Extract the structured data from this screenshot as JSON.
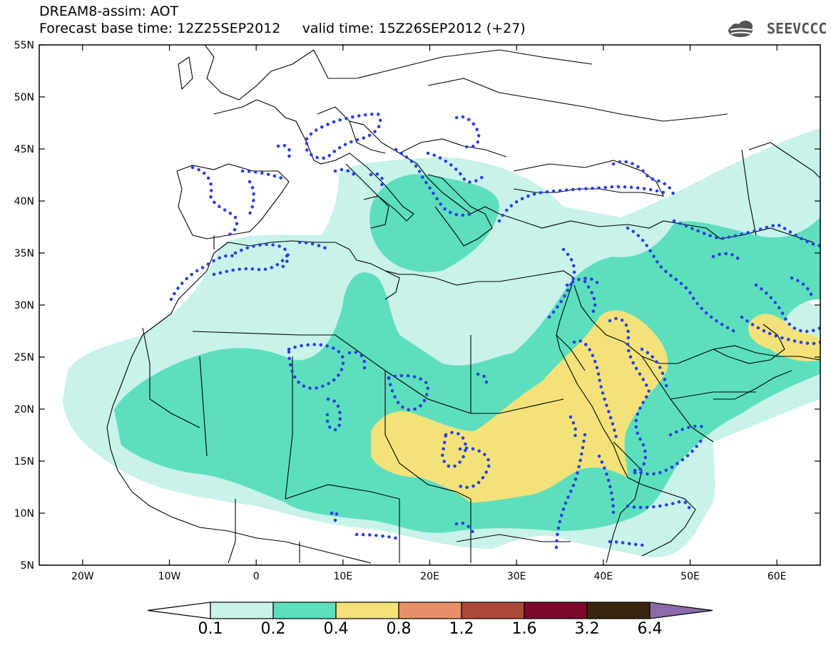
{
  "header": {
    "title_line1": "DREAM8-assim: AOT",
    "title_line2": "Forecast base time: 12Z25SEP2012     valid time: 15Z26SEP2012 (+27)"
  },
  "logo": {
    "text": "SEEVCCC",
    "icon": "cloud-icon"
  },
  "map": {
    "lon_range": [
      -25,
      65
    ],
    "lat_range": [
      5,
      55
    ],
    "lon_ticks": [
      {
        "value": -20,
        "label": "20W"
      },
      {
        "value": -10,
        "label": "10W"
      },
      {
        "value": 0,
        "label": "0"
      },
      {
        "value": 10,
        "label": "10E"
      },
      {
        "value": 20,
        "label": "20E"
      },
      {
        "value": 30,
        "label": "30E"
      },
      {
        "value": 40,
        "label": "40E"
      },
      {
        "value": 50,
        "label": "50E"
      },
      {
        "value": 60,
        "label": "60E"
      }
    ],
    "lat_ticks": [
      {
        "value": 55,
        "label": "55N"
      },
      {
        "value": 50,
        "label": "50N"
      },
      {
        "value": 45,
        "label": "45N"
      },
      {
        "value": 40,
        "label": "40N"
      },
      {
        "value": 35,
        "label": "35N"
      },
      {
        "value": 30,
        "label": "30N"
      },
      {
        "value": 25,
        "label": "25N"
      },
      {
        "value": 20,
        "label": "20N"
      },
      {
        "value": 15,
        "label": "15N"
      },
      {
        "value": 10,
        "label": "10N"
      },
      {
        "value": 5,
        "label": "5N"
      }
    ],
    "contour_style": "blue dotted",
    "colors": {
      "c1": "#c8f2ea",
      "c2": "#5ddfbd",
      "c3": "#f3e27a",
      "contour": "#2a3fe0",
      "coast": "#000000"
    }
  },
  "colorbar": {
    "labels": [
      "0.1",
      "0.2",
      "0.4",
      "0.8",
      "1.2",
      "1.6",
      "3.2",
      "6.4"
    ],
    "colors": [
      "#ffffff",
      "#c8f2ea",
      "#5ddfbd",
      "#f3e27a",
      "#e8906a",
      "#a94a3a",
      "#7d0a2a",
      "#3a2410",
      "#8a6aa8"
    ]
  }
}
